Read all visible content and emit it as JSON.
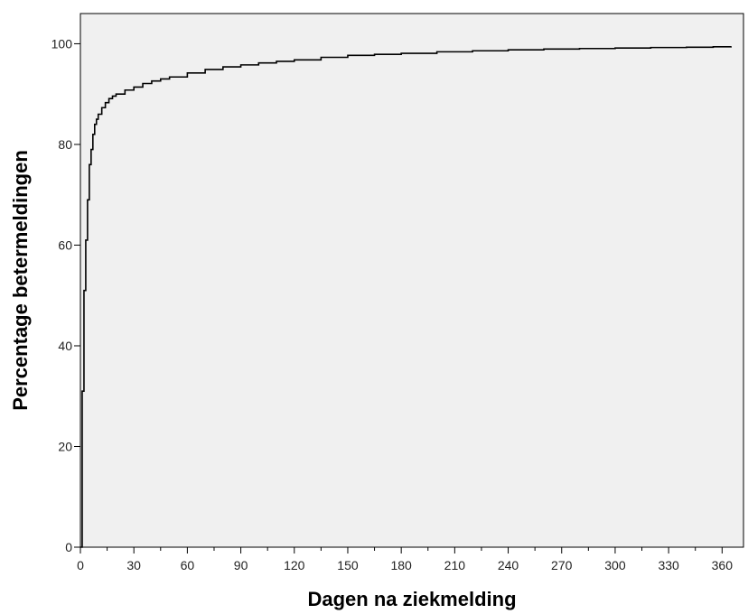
{
  "chart_data": {
    "type": "line",
    "title": "",
    "xlabel": "Dagen na ziekmelding",
    "ylabel": "Percentage betermeldingen",
    "xlim": [
      0,
      372
    ],
    "ylim": [
      0,
      106
    ],
    "x_ticks": [
      0,
      30,
      60,
      90,
      120,
      150,
      180,
      210,
      240,
      270,
      300,
      330,
      360
    ],
    "y_ticks": [
      0,
      20,
      40,
      60,
      80,
      100
    ],
    "grid": false,
    "legend": "none",
    "series": [
      {
        "step": true,
        "x": [
          0,
          1,
          2,
          3,
          4,
          5,
          6,
          7,
          8,
          9,
          10,
          12,
          14,
          16,
          18,
          20,
          25,
          30,
          35,
          40,
          45,
          50,
          60,
          70,
          80,
          90,
          100,
          110,
          120,
          135,
          150,
          165,
          180,
          200,
          220,
          240,
          260,
          280,
          300,
          320,
          340,
          355,
          365
        ],
        "y": [
          0,
          31,
          51,
          61,
          69,
          76,
          79,
          82,
          84,
          85,
          86,
          87.3,
          88.3,
          89.1,
          89.6,
          90,
          90.8,
          91.4,
          92.1,
          92.6,
          93,
          93.4,
          94.2,
          94.9,
          95.4,
          95.8,
          96.2,
          96.5,
          96.8,
          97.3,
          97.7,
          97.9,
          98.1,
          98.4,
          98.6,
          98.8,
          98.95,
          99.05,
          99.15,
          99.25,
          99.3,
          99.4,
          99.5
        ]
      }
    ]
  },
  "colors": {
    "plot_background": "#f0f0f0",
    "plot_border": "#000000",
    "line": "#000000",
    "page_background": "#ffffff"
  }
}
